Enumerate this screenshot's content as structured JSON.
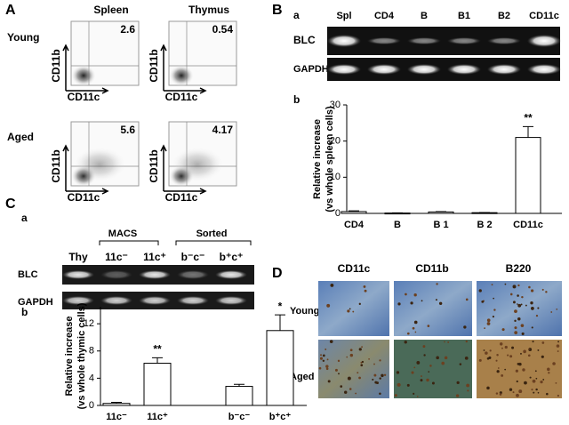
{
  "panels": {
    "A": {
      "letter": "A",
      "columns": [
        "Spleen",
        "Thymus"
      ],
      "rows": [
        "Young",
        "Aged"
      ],
      "plots": [
        {
          "value": 2.6,
          "y_label": "CD11b",
          "x_label": "CD11c"
        },
        {
          "value": 0.54,
          "y_label": "CD11b",
          "x_label": "CD11c"
        },
        {
          "value": 5.6,
          "y_label": "CD11b",
          "x_label": "CD11c"
        },
        {
          "value": 4.17,
          "y_label": "CD11b",
          "x_label": "CD11c"
        }
      ]
    },
    "B": {
      "letter": "B",
      "sub_a": "a",
      "sub_b": "b",
      "lanes": [
        "Spl",
        "CD4",
        "B",
        "B1",
        "B2",
        "CD11c"
      ],
      "rows": [
        "BLC",
        "GAPDH"
      ]
    },
    "C": {
      "letter": "C",
      "sub_a": "a",
      "sub_b": "b",
      "groups": [
        "MACS",
        "Sorted"
      ],
      "lanes": [
        "Thy",
        "11c⁻",
        "11c⁺",
        "b⁻c⁻",
        "b⁺c⁺"
      ],
      "rows": [
        "BLC",
        "GAPDH"
      ]
    },
    "D": {
      "letter": "D",
      "columns": [
        "CD11c",
        "CD11b",
        "B220"
      ],
      "rows": [
        "Young",
        "Aged"
      ]
    }
  },
  "chart_data": [
    {
      "type": "bar",
      "y_label": [
        "Relative increase",
        "(vs whole spleen cells)"
      ],
      "categories": [
        "CD4",
        "B",
        "B 1",
        "B 2",
        "CD11c"
      ],
      "values": [
        0.5,
        0.1,
        0.4,
        0.2,
        21
      ],
      "errors": [
        0.2,
        0.05,
        0.1,
        0.05,
        3
      ],
      "markers": [
        null,
        null,
        null,
        null,
        "**"
      ],
      "color": "#ffffff",
      "ylim": [
        0,
        30
      ],
      "yticks": [
        0,
        10,
        20,
        30
      ]
    },
    {
      "type": "bar",
      "y_label": [
        "Relative increase",
        "(vs whole thymic cells)"
      ],
      "categories": [
        "11c⁻",
        "11c⁺",
        null,
        "b⁻c⁻",
        "b⁺c⁺"
      ],
      "values": [
        0.3,
        6.2,
        null,
        2.8,
        11.0
      ],
      "errors": [
        0.15,
        0.8,
        null,
        0.3,
        2.3
      ],
      "markers": [
        null,
        "**",
        null,
        null,
        "*"
      ],
      "color": "#ffffff",
      "ylim": [
        0,
        14.5
      ],
      "yticks": [
        0,
        4,
        8,
        12
      ]
    }
  ]
}
